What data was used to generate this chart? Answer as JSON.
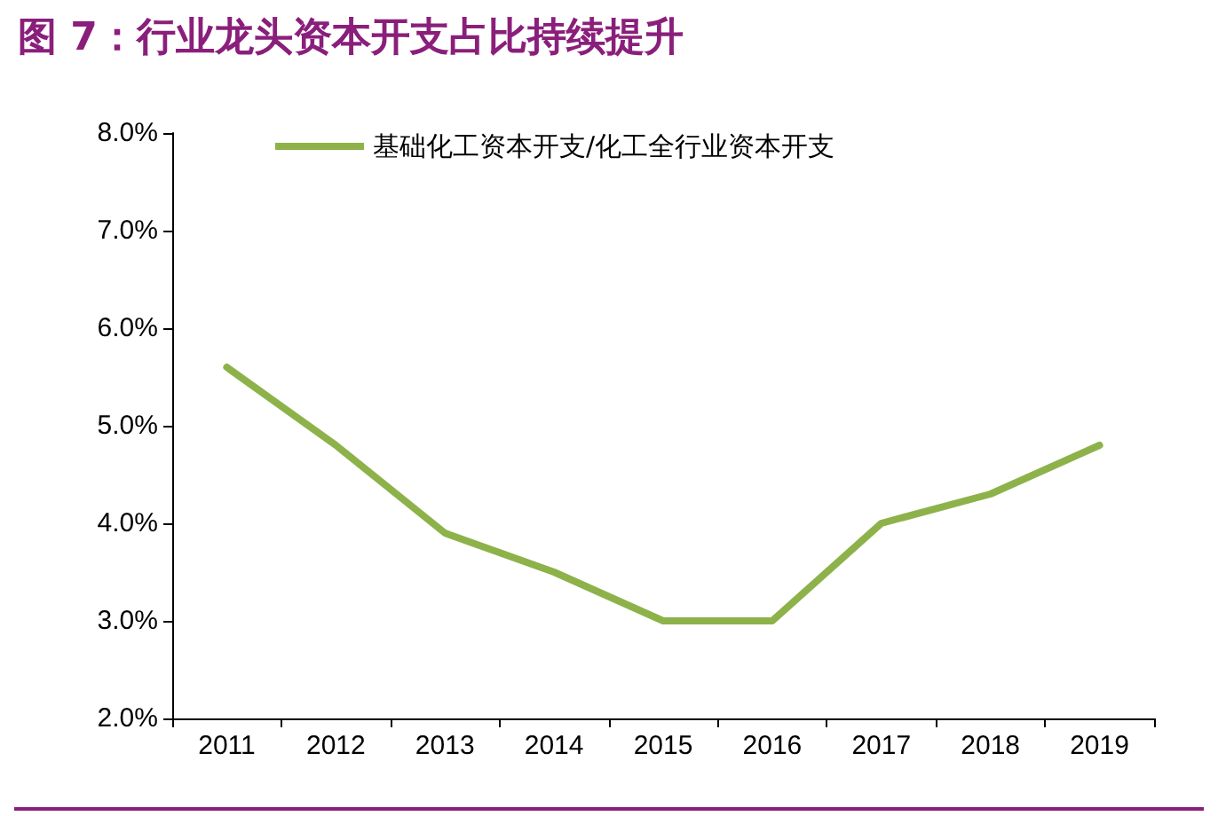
{
  "chart_data": {
    "type": "line",
    "title": "图 7：行业龙头资本开支占比持续提升",
    "categories": [
      "2011",
      "2012",
      "2013",
      "2014",
      "2015",
      "2016",
      "2017",
      "2018",
      "2019"
    ],
    "series": [
      {
        "name": "基础化工资本开支/化工全行业资本开支",
        "color": "#8db24a",
        "values": [
          5.6,
          4.8,
          3.9,
          3.5,
          3.0,
          3.0,
          4.0,
          4.3,
          4.8
        ]
      }
    ],
    "ylim": [
      2,
      8
    ],
    "yticks": [
      {
        "value": 2,
        "label": "2.0%"
      },
      {
        "value": 3,
        "label": "3.0%"
      },
      {
        "value": 4,
        "label": "4.0%"
      },
      {
        "value": 5,
        "label": "5.0%"
      },
      {
        "value": 6,
        "label": "6.0%"
      },
      {
        "value": 7,
        "label": "7.0%"
      },
      {
        "value": 8,
        "label": "8.0%"
      }
    ],
    "grid": false,
    "legend": "top",
    "marker": "none",
    "line_style": "solid"
  }
}
